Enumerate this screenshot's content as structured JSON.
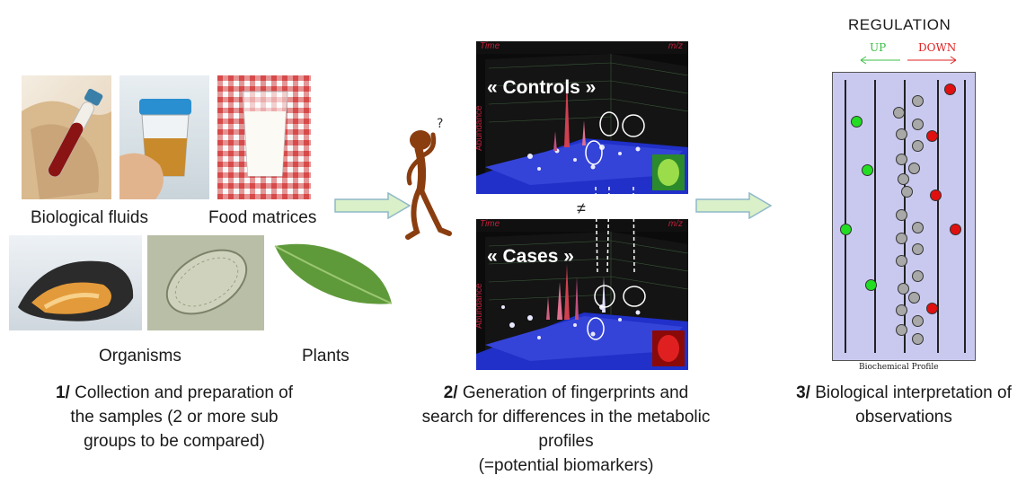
{
  "step1": {
    "labels": {
      "biological_fluids": "Biological fluids",
      "food_matrices": "Food matrices",
      "organisms": "Organisms",
      "plants": "Plants"
    },
    "number": "1/",
    "text_line1": " Collection and preparation of",
    "text_line2": "the samples (2 or more sub",
    "text_line3": "groups to be compared)"
  },
  "step2": {
    "plot_top": {
      "time_label": "Time",
      "mz_label": "m/z",
      "axis_label": "Abundance",
      "title": "« Controls »"
    },
    "not_equal": "≠",
    "plot_bottom": {
      "time_label": "Time",
      "mz_label": "m/z",
      "axis_label": "Abundance",
      "title": "« Cases »"
    },
    "number": "2/",
    "text_line1": " Generation of fingerprints and",
    "text_line2": "search for differences in the metabolic",
    "text_line3": "profiles",
    "text_line4": "(=potential biomarkers)"
  },
  "step3": {
    "regulation_title": "REGULATION",
    "up_label": "UP",
    "down_label": "DOWN",
    "profile_label": "Biochemical Profile",
    "colors": {
      "up": "#22dd22",
      "down": "#e01010",
      "neutral": "#a8a8a8",
      "panel": "#c9c9f0"
    },
    "number": "3/",
    "text_line1": " Biological interpretation of",
    "text_line2": "observations"
  }
}
